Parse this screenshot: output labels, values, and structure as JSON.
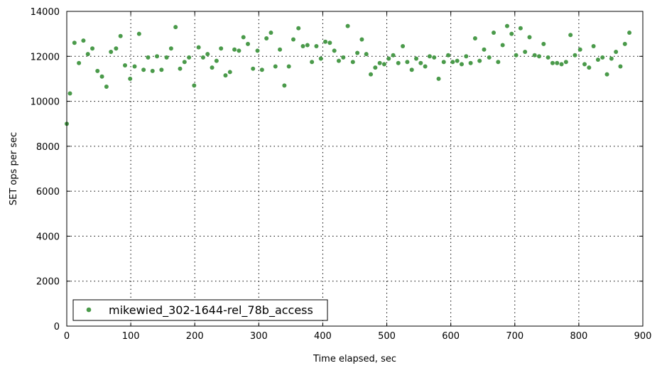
{
  "chart_data": {
    "type": "scatter",
    "xlabel": "Time elapsed, sec",
    "ylabel": "SET ops per sec",
    "xlim": [
      0,
      900
    ],
    "ylim": [
      0,
      14000
    ],
    "xticks": [
      0,
      100,
      200,
      300,
      400,
      500,
      600,
      700,
      800,
      900
    ],
    "yticks": [
      0,
      2000,
      4000,
      6000,
      8000,
      10000,
      12000,
      14000
    ],
    "grid": true,
    "legend_position": "bottom-left",
    "series": [
      {
        "name": "mikewied_302-1644-rel_78b_access",
        "color": "#4a9a4a",
        "points": [
          [
            0,
            9000
          ],
          [
            5,
            10350
          ],
          [
            12,
            12600
          ],
          [
            19,
            11700
          ],
          [
            26,
            12700
          ],
          [
            33,
            12100
          ],
          [
            40,
            12350
          ],
          [
            48,
            11350
          ],
          [
            55,
            11100
          ],
          [
            62,
            10650
          ],
          [
            69,
            12200
          ],
          [
            77,
            12350
          ],
          [
            84,
            12900
          ],
          [
            91,
            11600
          ],
          [
            99,
            11000
          ],
          [
            106,
            11550
          ],
          [
            113,
            13000
          ],
          [
            120,
            11400
          ],
          [
            127,
            11950
          ],
          [
            134,
            11350
          ],
          [
            141,
            12000
          ],
          [
            148,
            11400
          ],
          [
            156,
            11950
          ],
          [
            163,
            12350
          ],
          [
            170,
            13300
          ],
          [
            177,
            11450
          ],
          [
            184,
            11750
          ],
          [
            191,
            11950
          ],
          [
            199,
            10700
          ],
          [
            206,
            12400
          ],
          [
            213,
            11950
          ],
          [
            220,
            12100
          ],
          [
            227,
            11500
          ],
          [
            234,
            11800
          ],
          [
            241,
            12350
          ],
          [
            248,
            11150
          ],
          [
            255,
            11300
          ],
          [
            262,
            12300
          ],
          [
            269,
            12250
          ],
          [
            276,
            12850
          ],
          [
            283,
            12550
          ],
          [
            291,
            11450
          ],
          [
            298,
            12250
          ],
          [
            305,
            11400
          ],
          [
            312,
            12800
          ],
          [
            319,
            13050
          ],
          [
            326,
            11550
          ],
          [
            333,
            12300
          ],
          [
            340,
            10700
          ],
          [
            347,
            11550
          ],
          [
            354,
            12750
          ],
          [
            362,
            13250
          ],
          [
            369,
            12450
          ],
          [
            376,
            12500
          ],
          [
            383,
            11750
          ],
          [
            390,
            12450
          ],
          [
            397,
            11900
          ],
          [
            404,
            12650
          ],
          [
            411,
            12600
          ],
          [
            418,
            12250
          ],
          [
            425,
            11800
          ],
          [
            432,
            11950
          ],
          [
            439,
            13350
          ],
          [
            447,
            11750
          ],
          [
            454,
            12150
          ],
          [
            461,
            12750
          ],
          [
            468,
            12100
          ],
          [
            475,
            11200
          ],
          [
            482,
            11500
          ],
          [
            489,
            11700
          ],
          [
            496,
            11650
          ],
          [
            503,
            11900
          ],
          [
            510,
            12050
          ],
          [
            518,
            11700
          ],
          [
            525,
            12450
          ],
          [
            532,
            11750
          ],
          [
            539,
            11400
          ],
          [
            546,
            11900
          ],
          [
            553,
            11700
          ],
          [
            560,
            11550
          ],
          [
            567,
            12000
          ],
          [
            574,
            11950
          ],
          [
            581,
            11000
          ],
          [
            589,
            11750
          ],
          [
            596,
            12050
          ],
          [
            603,
            11750
          ],
          [
            610,
            11800
          ],
          [
            617,
            11650
          ],
          [
            624,
            12000
          ],
          [
            631,
            11700
          ],
          [
            638,
            12800
          ],
          [
            645,
            11800
          ],
          [
            652,
            12300
          ],
          [
            660,
            11950
          ],
          [
            667,
            13050
          ],
          [
            674,
            11750
          ],
          [
            681,
            12500
          ],
          [
            688,
            13350
          ],
          [
            695,
            13000
          ],
          [
            702,
            12050
          ],
          [
            709,
            13250
          ],
          [
            716,
            12200
          ],
          [
            723,
            12850
          ],
          [
            731,
            12050
          ],
          [
            738,
            12000
          ],
          [
            745,
            12550
          ],
          [
            752,
            11950
          ],
          [
            759,
            11700
          ],
          [
            766,
            11700
          ],
          [
            773,
            11650
          ],
          [
            780,
            11750
          ],
          [
            787,
            12950
          ],
          [
            794,
            12050
          ],
          [
            802,
            12300
          ],
          [
            809,
            11650
          ],
          [
            816,
            11500
          ],
          [
            823,
            12450
          ],
          [
            830,
            11850
          ],
          [
            837,
            11950
          ],
          [
            844,
            11200
          ],
          [
            851,
            11900
          ],
          [
            858,
            12200
          ],
          [
            865,
            11550
          ],
          [
            872,
            12550
          ],
          [
            879,
            13050
          ]
        ]
      }
    ]
  }
}
